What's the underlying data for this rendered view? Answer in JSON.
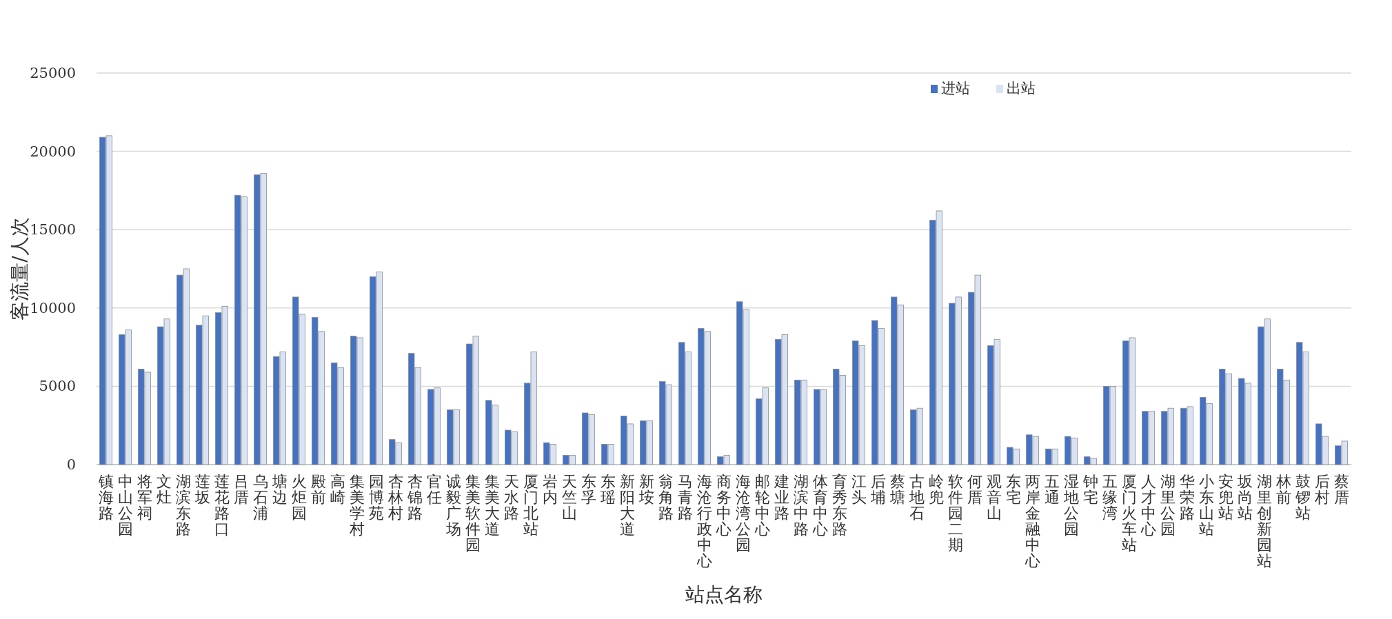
{
  "chart_data": {
    "type": "bar",
    "xlabel": "站点名称",
    "ylabel": "客流量/人次",
    "categories": [
      "镇海路",
      "中山公园",
      "将军祠",
      "文灶",
      "湖滨东路",
      "莲坂",
      "莲花路口",
      "吕厝",
      "乌石浦",
      "塘边",
      "火炬园",
      "殿前",
      "高崎",
      "集美学村",
      "园博苑",
      "杏林村",
      "杏锦路",
      "官任",
      "诚毅广场",
      "集美软件园",
      "集美大道",
      "天水路",
      "厦门北站",
      "岩内",
      "天竺山",
      "东孚",
      "东瑶",
      "新阳大道",
      "新垵",
      "翁角路",
      "马青路",
      "海沧行政中心",
      "商务中心",
      "海沧湾公园",
      "邮轮中心",
      "建业路",
      "湖滨中路",
      "体育中心",
      "育秀东路",
      "江头",
      "后埔",
      "蔡塘",
      "古地石",
      "岭兜",
      "软件园二期",
      "何厝",
      "观音山",
      "东宅",
      "两岸金融中心",
      "五通",
      "湿地公园",
      "钟宅",
      "五缘湾",
      "厦门火车站",
      "人才中心",
      "湖里公园",
      "华荣路",
      "小东山站",
      "安兜站",
      "坂尚站",
      "湖里创新园站",
      "林前",
      "鼓锣站",
      "后村",
      "蔡厝"
    ],
    "series": [
      {
        "name": "进站",
        "color": "#4472c4",
        "values": [
          20900,
          8300,
          6100,
          8800,
          12100,
          8900,
          9700,
          17200,
          18500,
          6900,
          10700,
          9400,
          6500,
          8200,
          12000,
          1600,
          7100,
          4800,
          3500,
          7700,
          4100,
          2200,
          5200,
          1400,
          600,
          3300,
          1300,
          3100,
          2800,
          5300,
          7800,
          8700,
          500,
          10400,
          4200,
          8000,
          5400,
          4800,
          6100,
          7900,
          9200,
          10700,
          3500,
          15600,
          10300,
          11000,
          7600,
          1100,
          1900,
          1000,
          1800,
          500,
          5000,
          7900,
          3400,
          3400,
          3600,
          4300,
          6100,
          5500,
          8800,
          6100,
          7800,
          2600,
          1200
        ]
      },
      {
        "name": "出站",
        "color": "#dae3f3",
        "values": [
          21000,
          8600,
          5900,
          9300,
          12500,
          9500,
          10100,
          17100,
          18600,
          7200,
          9600,
          8500,
          6200,
          8100,
          12300,
          1400,
          6200,
          4900,
          3500,
          8200,
          3800,
          2100,
          7200,
          1300,
          600,
          3200,
          1300,
          2600,
          2800,
          5100,
          7200,
          8500,
          600,
          9900,
          4900,
          8300,
          5400,
          4800,
          5700,
          7600,
          8700,
          10200,
          3600,
          16200,
          10700,
          12100,
          8000,
          1000,
          1800,
          1000,
          1700,
          400,
          5000,
          8100,
          3400,
          3600,
          3700,
          3900,
          5800,
          5200,
          9300,
          5400,
          7200,
          1800,
          1500
        ]
      }
    ],
    "ylim": [
      0,
      25000
    ],
    "yticks": [
      0,
      5000,
      10000,
      15000,
      20000,
      25000
    ],
    "grid": "y",
    "legend": "top right"
  }
}
